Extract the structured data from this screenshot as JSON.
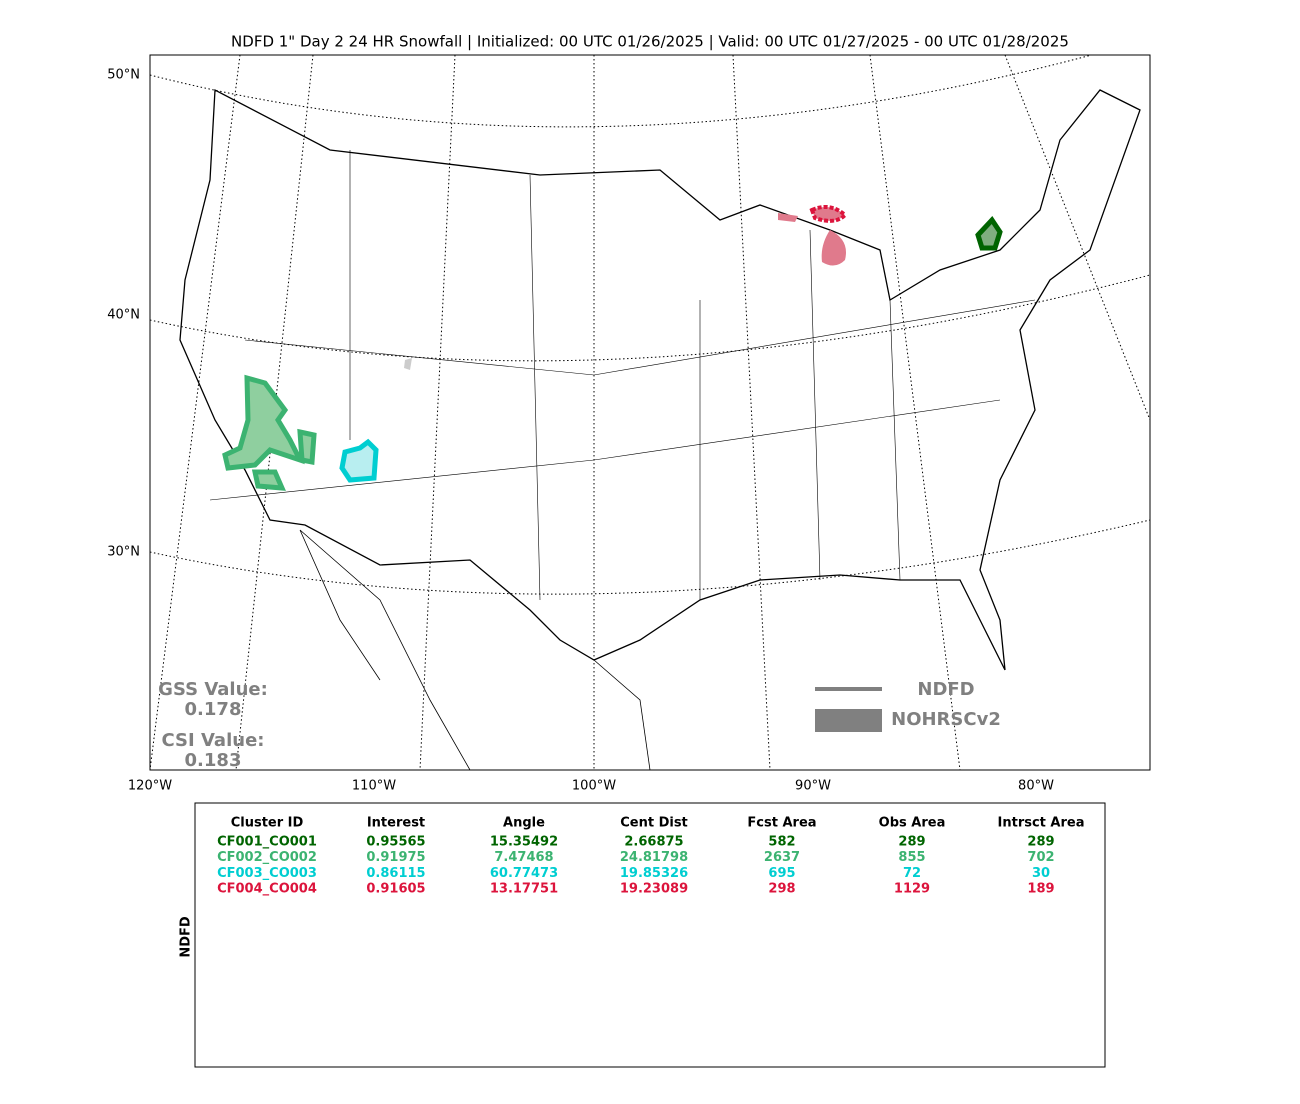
{
  "title": "NDFD 1\" Day 2 24 HR Snowfall | Initialized: 00 UTC 01/26/2025 | Valid: 00 UTC 01/27/2025 - 00 UTC 01/28/2025",
  "map": {
    "lat_labels": [
      "50°N",
      "40°N",
      "30°N"
    ],
    "lon_labels": [
      "120°W",
      "110°W",
      "100°W",
      "90°W",
      "80°W"
    ],
    "scores": {
      "gss_label": "GSS Value:",
      "gss": 0.178,
      "csi_label": "CSI Value:",
      "csi": 0.183
    },
    "legend": {
      "line": "NDFD",
      "fill": "NOHRSCv2"
    }
  },
  "table": {
    "side_label": "NDFD",
    "headers": [
      "Cluster ID",
      "Interest",
      "Angle",
      "Cent Dist",
      "Fcst Area",
      "Obs Area",
      "Intrsct Area"
    ],
    "rows": [
      {
        "color": "#006400",
        "cells": [
          "CF001_CO001",
          0.95565,
          15.35492,
          2.66875,
          582,
          289,
          289
        ]
      },
      {
        "color": "#3cb371",
        "cells": [
          "CF002_CO002",
          0.91975,
          7.47468,
          24.81798,
          2637,
          855,
          702
        ]
      },
      {
        "color": "#00ced1",
        "cells": [
          "CF003_CO003",
          0.86115,
          60.77473,
          19.85326,
          695,
          72,
          30
        ]
      },
      {
        "color": "#dc143c",
        "cells": [
          "CF004_CO004",
          0.91605,
          13.17751,
          19.23089,
          298,
          1129,
          189
        ]
      }
    ]
  }
}
